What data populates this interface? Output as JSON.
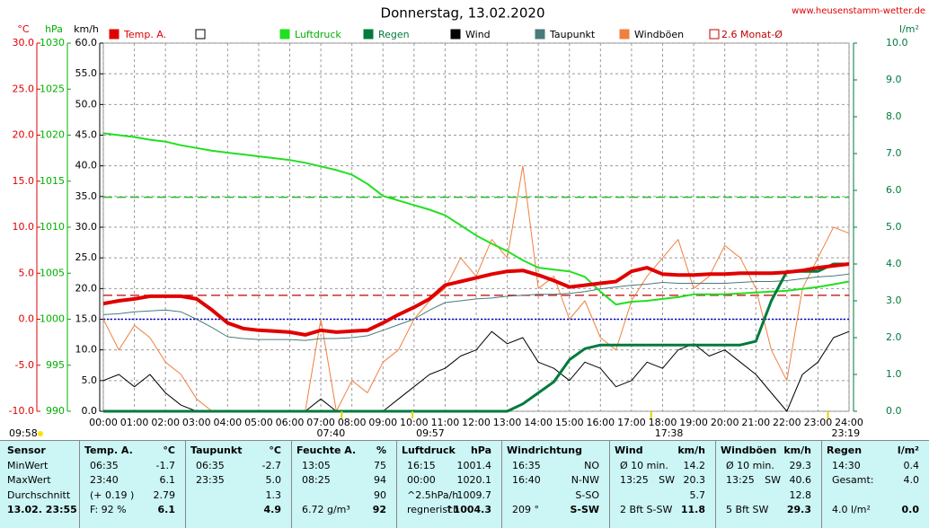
{
  "chart_data": {
    "type": "line",
    "title": "Donnerstag, 13.02.2020",
    "site": "www.heusenstamm-wetter.de",
    "x": [
      0,
      0.5,
      1,
      1.5,
      2,
      2.5,
      3,
      3.5,
      4,
      4.5,
      5,
      5.5,
      6,
      6.5,
      7,
      7.5,
      8,
      8.5,
      9,
      9.5,
      10,
      10.5,
      11,
      11.5,
      12,
      12.5,
      13,
      13.5,
      14,
      14.5,
      15,
      15.5,
      16,
      16.5,
      17,
      17.5,
      18,
      18.5,
      19,
      19.5,
      20,
      20.5,
      21,
      21.5,
      22,
      22.5,
      23,
      23.5,
      24
    ],
    "xlim": [
      0,
      24
    ],
    "xticks": [
      {
        "value": 0,
        "label": "00:00"
      },
      {
        "value": 1,
        "label": "01:00"
      },
      {
        "value": 2,
        "label": "02:00"
      },
      {
        "value": 3,
        "label": "03:00"
      },
      {
        "value": 4,
        "label": "04:00"
      },
      {
        "value": 5,
        "label": "05:00"
      },
      {
        "value": 6,
        "label": "06:00"
      },
      {
        "value": 7,
        "label": "07:00"
      },
      {
        "value": 8,
        "label": "08:00"
      },
      {
        "value": 9,
        "label": "09:00"
      },
      {
        "value": 10,
        "label": "10:00"
      },
      {
        "value": 11,
        "label": "11:00"
      },
      {
        "value": 12,
        "label": "12:00"
      },
      {
        "value": 13,
        "label": "13:00"
      },
      {
        "value": 14,
        "label": "14:00"
      },
      {
        "value": 15,
        "label": "15:00"
      },
      {
        "value": 16,
        "label": "16:00"
      },
      {
        "value": 17,
        "label": "17:00"
      },
      {
        "value": 18,
        "label": "18:00"
      },
      {
        "value": 19,
        "label": "19:00"
      },
      {
        "value": 20,
        "label": "20:00"
      },
      {
        "value": 21,
        "label": "21:00"
      },
      {
        "value": 22,
        "label": "22:00"
      },
      {
        "value": 23,
        "label": "23:00"
      },
      {
        "value": 24,
        "label": "24:00"
      }
    ],
    "grid": true,
    "axes": {
      "temp": {
        "label": "°C",
        "color": "#e00000",
        "side": "left",
        "ylim": [
          -10,
          30
        ],
        "yticks": [
          {
            "value": 30,
            "label": "30.0"
          },
          {
            "value": 25,
            "label": "25.0"
          },
          {
            "value": 20,
            "label": "20.0"
          },
          {
            "value": 15,
            "label": "15.0"
          },
          {
            "value": 10,
            "label": "10.0"
          },
          {
            "value": 5,
            "label": "5.0"
          },
          {
            "value": 0,
            "label": "0.0"
          },
          {
            "value": -5,
            "label": "-5.0"
          },
          {
            "value": -10,
            "label": "-10.0"
          }
        ]
      },
      "pressure": {
        "label": "hPa",
        "color": "#00b000",
        "side": "left",
        "ylim": [
          990,
          1030
        ],
        "yticks": [
          1030,
          1025,
          1020,
          1015,
          1010,
          1005,
          1000,
          995,
          990
        ]
      },
      "speed": {
        "label": "km/h",
        "color": "#000000",
        "side": "left",
        "ylim": [
          0,
          60
        ],
        "yticks": [
          {
            "value": 60,
            "label": "60.0"
          },
          {
            "value": 55,
            "label": "55.0"
          },
          {
            "value": 50,
            "label": "50.0"
          },
          {
            "value": 45,
            "label": "45.0"
          },
          {
            "value": 40,
            "label": "40.0"
          },
          {
            "value": 35,
            "label": "35.0"
          },
          {
            "value": 30,
            "label": "30.0"
          },
          {
            "value": 25,
            "label": "25.0"
          },
          {
            "value": 20,
            "label": "20.0"
          },
          {
            "value": 15,
            "label": "15.0"
          },
          {
            "value": 10,
            "label": "10.0"
          },
          {
            "value": 5,
            "label": "5.0"
          },
          {
            "value": 0,
            "label": "0.0"
          }
        ]
      },
      "rain": {
        "label": "l/m²",
        "color": "#007a3d",
        "side": "right",
        "ylim": [
          0,
          10
        ],
        "yticks": [
          {
            "value": 10,
            "label": "10.0"
          },
          {
            "value": 9,
            "label": "9.0"
          },
          {
            "value": 8,
            "label": "8.0"
          },
          {
            "value": 7,
            "label": "7.0"
          },
          {
            "value": 6,
            "label": "6.0"
          },
          {
            "value": 5,
            "label": "5.0"
          },
          {
            "value": 4,
            "label": "4.0"
          },
          {
            "value": 3,
            "label": "3.0"
          },
          {
            "value": 2,
            "label": "2.0"
          },
          {
            "value": 1,
            "label": "1.0"
          },
          {
            "value": 0,
            "label": "0.0"
          }
        ]
      }
    },
    "series": [
      {
        "name": "Windböen",
        "color": "#f08040",
        "axis": "speed",
        "width": 1,
        "values": [
          15,
          10,
          14,
          12,
          8,
          6,
          2,
          0,
          0,
          0,
          0,
          0,
          0,
          0,
          15,
          0,
          5,
          3,
          8,
          10,
          15,
          18,
          20,
          25,
          22,
          28,
          25,
          40,
          20,
          22,
          15,
          18,
          12,
          10,
          18,
          22,
          25,
          28,
          20,
          22,
          27,
          25,
          20,
          10,
          5,
          20,
          25,
          30,
          29
        ]
      },
      {
        "name": "Wind",
        "color": "#000000",
        "axis": "speed",
        "width": 1,
        "values": [
          5,
          6,
          4,
          6,
          3,
          1,
          0,
          0,
          0,
          0,
          0,
          0,
          0,
          0,
          2,
          0,
          0,
          0,
          0,
          2,
          4,
          6,
          7,
          9,
          10,
          13,
          11,
          12,
          8,
          7,
          5,
          8,
          7,
          4,
          5,
          8,
          7,
          10,
          11,
          9,
          10,
          8,
          6,
          3,
          0,
          6,
          8,
          12,
          13
        ]
      },
      {
        "name": "Taupunkt",
        "color": "#4a7a7a",
        "axis": "temp",
        "width": 1,
        "values": [
          0.5,
          0.6,
          0.8,
          0.9,
          1.0,
          0.8,
          0.0,
          -0.9,
          -1.9,
          -2.1,
          -2.2,
          -2.2,
          -2.2,
          -2.3,
          -2.1,
          -2.1,
          -2.0,
          -1.8,
          -1.2,
          -0.6,
          0.0,
          1.0,
          1.8,
          2.0,
          2.2,
          2.3,
          2.5,
          2.6,
          2.7,
          2.7,
          2.8,
          3.0,
          3.3,
          3.5,
          3.7,
          3.8,
          4.0,
          3.9,
          3.9,
          3.9,
          3.9,
          4.0,
          4.1,
          4.1,
          4.2,
          4.4,
          4.6,
          4.7,
          4.9
        ]
      },
      {
        "name": "Luftdruck",
        "color": "#20e020",
        "axis": "pressure",
        "width": 2,
        "values": [
          1020.2,
          1020.0,
          1019.8,
          1019.5,
          1019.3,
          1018.9,
          1018.6,
          1018.3,
          1018.1,
          1017.9,
          1017.7,
          1017.5,
          1017.3,
          1017.0,
          1016.6,
          1016.2,
          1015.7,
          1014.7,
          1013.4,
          1012.9,
          1012.4,
          1011.9,
          1011.3,
          1010.2,
          1009.1,
          1008.2,
          1007.4,
          1006.4,
          1005.6,
          1005.4,
          1005.2,
          1004.6,
          1003.0,
          1001.6,
          1001.9,
          1002.0,
          1002.2,
          1002.4,
          1002.7,
          1002.7,
          1002.7,
          1002.8,
          1002.9,
          1003.0,
          1003.1,
          1003.3,
          1003.5,
          1003.8,
          1004.1
        ]
      },
      {
        "name": "Regen",
        "color": "#007a3d",
        "axis": "rain",
        "width": 3,
        "values": [
          0,
          0,
          0,
          0,
          0,
          0,
          0,
          0,
          0,
          0,
          0,
          0,
          0,
          0,
          0,
          0,
          0,
          0,
          0,
          0,
          0,
          0,
          0,
          0,
          0,
          0,
          0,
          0.2,
          0.5,
          0.8,
          1.4,
          1.7,
          1.8,
          1.8,
          1.8,
          1.8,
          1.8,
          1.8,
          1.8,
          1.8,
          1.8,
          1.8,
          1.9,
          3.0,
          3.8,
          3.8,
          3.8,
          4.0,
          4.0
        ]
      },
      {
        "name": "Temp. A.",
        "color": "#e00000",
        "axis": "temp",
        "width": 4,
        "values": [
          1.7,
          2.0,
          2.2,
          2.5,
          2.5,
          2.5,
          2.2,
          1.0,
          -0.4,
          -1.0,
          -1.2,
          -1.3,
          -1.4,
          -1.7,
          -1.2,
          -1.4,
          -1.3,
          -1.2,
          -0.4,
          0.5,
          1.3,
          2.2,
          3.7,
          4.1,
          4.5,
          4.9,
          5.2,
          5.3,
          4.8,
          4.2,
          3.5,
          3.7,
          3.9,
          4.1,
          5.2,
          5.6,
          4.9,
          4.8,
          4.8,
          4.9,
          4.9,
          5.0,
          5.0,
          5.0,
          5.1,
          5.3,
          5.6,
          5.8,
          6.0
        ]
      }
    ],
    "legend_order": [
      "Temp. A.",
      "Luftdruck",
      "Regen",
      "Wind",
      "Taupunkt",
      "Windböen"
    ],
    "reference_lines": [
      {
        "name": "2.6 Monat-Ø",
        "axis": "temp",
        "value": 2.6,
        "color": "#c00000",
        "style": "dashed"
      },
      {
        "axis": "temp",
        "value": 0,
        "color": "#0000d0",
        "style": "dotted"
      },
      {
        "axis": "pressure",
        "value": 1013.25,
        "color": "#20c020",
        "style": "dashed"
      }
    ],
    "left_note": "09:58",
    "events": [
      {
        "x": 7.67,
        "label": "07:40"
      },
      {
        "x": 9.95,
        "label": "09:57"
      },
      {
        "x": 17.63,
        "label": "17:38"
      },
      {
        "x": 23.32,
        "label": "23:19"
      }
    ]
  },
  "table": {
    "first_column": {
      "header": "Sensor",
      "rows": [
        "MinWert",
        "MaxWert",
        "Durchschnitt",
        "13.02. 23:55"
      ]
    },
    "groups": [
      {
        "header": "Temp. A.",
        "unit": "°C",
        "rows": [
          {
            "a": "06:35",
            "v": "-1.7"
          },
          {
            "a": "23:40",
            "v": "6.1"
          },
          {
            "a": "(+ 0.19 )",
            "v": "2.79"
          },
          {
            "a": "F: 92 %",
            "v": "6.1"
          }
        ]
      },
      {
        "header": "Taupunkt",
        "unit": "°C",
        "rows": [
          {
            "a": "06:35",
            "v": "-2.7"
          },
          {
            "a": "23:35",
            "v": "5.0"
          },
          {
            "v": "1.3"
          },
          {
            "v": "4.9"
          }
        ]
      },
      {
        "header": "Feuchte A.",
        "unit": "%",
        "rows": [
          {
            "a": "13:05",
            "v": "75"
          },
          {
            "a": "08:25",
            "v": "94"
          },
          {
            "v": "90"
          },
          {
            "a": "6.72 g/m³",
            "v": "92"
          }
        ]
      },
      {
        "header": "Luftdruck",
        "unit": "hPa",
        "rows": [
          {
            "a": "16:15",
            "v": "1001.4"
          },
          {
            "a": "00:00",
            "v": "1020.1"
          },
          {
            "a": "^2.5hPa/h",
            "v": "1009.7"
          },
          {
            "a": "regnerisch",
            "v": "↑1004.3"
          }
        ]
      },
      {
        "header": "Windrichtung",
        "rows": [
          {
            "a": "16:35",
            "v": "NO"
          },
          {
            "a": "16:40",
            "v": "N-NW"
          },
          {
            "v": "S-SO"
          },
          {
            "a": "209 °",
            "v": "S-SW"
          }
        ]
      },
      {
        "header": "Wind",
        "unit": "km/h",
        "rows": [
          {
            "a": "Ø 10 min.",
            "v": "14.2"
          },
          {
            "a": "13:25",
            "b": "SW",
            "v": "20.3"
          },
          {
            "v": "5.7"
          },
          {
            "a": "2 Bft S-SW",
            "v": "11.8"
          }
        ]
      },
      {
        "header": "Windböen",
        "unit": "km/h",
        "rows": [
          {
            "a": "Ø 10 min.",
            "v": "29.3"
          },
          {
            "a": "13:25",
            "b": "SW",
            "v": "40.6"
          },
          {
            "v": "12.8"
          },
          {
            "a": "5 Bft SW",
            "v": "29.3"
          }
        ]
      },
      {
        "header": "Regen",
        "unit": "l/m²",
        "rows": [
          {
            "a": "14:30",
            "v": "0.4"
          },
          {
            "a": "Gesamt:",
            "v": "4.0"
          },
          {},
          {
            "a": "4.0 l/m²",
            "v": "0.0"
          }
        ]
      }
    ]
  }
}
